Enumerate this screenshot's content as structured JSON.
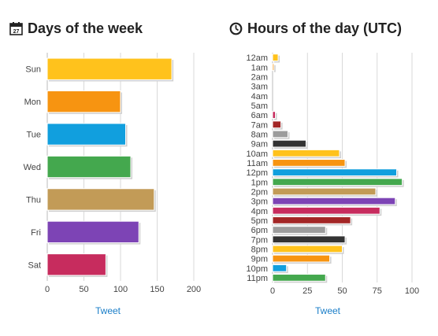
{
  "page": {
    "left_title": "Days of the week",
    "right_title": "Hours of the day (UTC)",
    "left_tweet": "Tweet",
    "right_tweet": "Tweet"
  },
  "colors": {
    "yellow": "#ffc21c",
    "orange": "#f79411",
    "blue": "#119fde",
    "green": "#44a84e",
    "tan": "#c29b57",
    "purple": "#7d44b5",
    "crimson": "#c72c5e",
    "dark_red": "#a32626",
    "gray": "#9c9c9c",
    "black": "#333333",
    "grid": "#d9d9d9"
  },
  "icons": {
    "left_title_icon": "calendar-icon",
    "right_title_icon": "clock-icon"
  },
  "chart_data": [
    {
      "type": "bar",
      "orientation": "horizontal",
      "title": "Days of the week",
      "categories": [
        "Sun",
        "Mon",
        "Tue",
        "Wed",
        "Thu",
        "Fri",
        "Sat"
      ],
      "values": [
        170,
        100,
        107,
        114,
        146,
        125,
        80
      ],
      "colors": [
        "#ffc21c",
        "#f79411",
        "#119fde",
        "#44a84e",
        "#c29b57",
        "#7d44b5",
        "#c72c5e"
      ],
      "xlim": [
        0,
        200
      ],
      "xticks": [
        0,
        50,
        100,
        150,
        200
      ],
      "grid": true
    },
    {
      "type": "bar",
      "orientation": "horizontal",
      "title": "Hours of the day (UTC)",
      "categories": [
        "12am",
        "1am",
        "2am",
        "3am",
        "4am",
        "5am",
        "6am",
        "7am",
        "8am",
        "9am",
        "10am",
        "11am",
        "12pm",
        "1pm",
        "2pm",
        "3pm",
        "4pm",
        "5pm",
        "6pm",
        "7pm",
        "8pm",
        "9pm",
        "10pm",
        "11pm"
      ],
      "values": [
        4,
        1,
        0,
        0,
        0,
        0,
        2,
        6,
        11,
        24,
        48,
        52,
        89,
        93,
        74,
        88,
        77,
        56,
        38,
        52,
        50,
        41,
        10,
        38
      ],
      "colors": [
        "#ffc21c",
        "#f79411",
        "#119fde",
        "#44a84e",
        "#c29b57",
        "#7d44b5",
        "#c72c5e",
        "#a32626",
        "#9c9c9c",
        "#333333",
        "#ffc21c",
        "#f79411",
        "#119fde",
        "#44a84e",
        "#c29b57",
        "#7d44b5",
        "#c72c5e",
        "#a32626",
        "#9c9c9c",
        "#333333",
        "#ffc21c",
        "#f79411",
        "#119fde",
        "#44a84e"
      ],
      "xlim": [
        0,
        100
      ],
      "xticks": [
        0,
        25,
        50,
        75,
        100
      ],
      "grid": true
    }
  ]
}
